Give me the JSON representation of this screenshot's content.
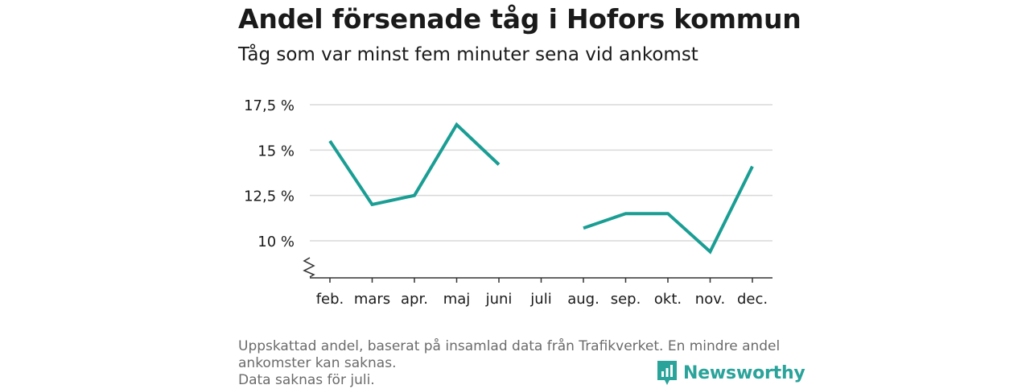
{
  "header": {
    "title": "Andel försenade tåg i Hofors kommun",
    "subtitle": "Tåg som var minst fem minuter sena vid ankomst"
  },
  "chart_data": {
    "type": "line",
    "title": "Andel försenade tåg i Hofors kommun",
    "subtitle": "Tåg som var minst fem minuter sena vid ankomst",
    "categories": [
      "feb.",
      "mars",
      "apr.",
      "maj",
      "juni",
      "juli",
      "aug.",
      "sep.",
      "okt.",
      "nov.",
      "dec."
    ],
    "series": [
      {
        "values": [
          15.5,
          12.0,
          12.5,
          16.4,
          14.2,
          null,
          10.7,
          11.5,
          11.5,
          9.4,
          14.1
        ],
        "color": "#1a9e94"
      }
    ],
    "yticks": [
      10,
      12.5,
      15,
      17.5
    ],
    "ytick_labels": [
      "10 %",
      "12,5 %",
      "15 %",
      "17,5 %"
    ],
    "ylim": [
      8,
      17.5
    ],
    "y_axis_break": true,
    "grid": true
  },
  "footer": {
    "note_line1": "Uppskattad andel, baserat på insamlad data från Trafikverket. En mindre andel",
    "note_line2": "ankomster kan saknas.",
    "note_line3": "Data saknas för juli."
  },
  "brand": {
    "name": "Newsworthy",
    "color": "#2aa39a",
    "icon": "bar-chart-logo-icon"
  }
}
